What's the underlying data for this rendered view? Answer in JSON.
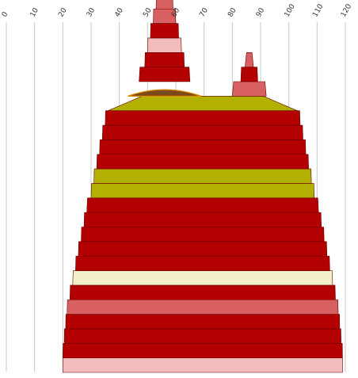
{
  "chart_data": {
    "type": "area",
    "subtype": "stacked-band-profile",
    "title": "",
    "xlabel": "",
    "ylabel": "",
    "x_ticks": [
      0,
      10,
      20,
      30,
      40,
      50,
      60,
      70,
      80,
      90,
      100,
      110,
      120
    ],
    "xlim": [
      0,
      120
    ],
    "grid": "vertical",
    "legend": "none",
    "colors": {
      "red": "#b30000",
      "olive": "#b2b000",
      "salmon": "#d86060",
      "pink": "#f2bcbc",
      "cream": "#f2f0c8",
      "brown": "#7a4a1a",
      "orange": "#e08a00",
      "stroke": "#6a0000"
    },
    "bands": [
      {
        "layer": 1,
        "x": [
          20,
          119
        ],
        "color": "pink"
      },
      {
        "layer": 2,
        "x": [
          20,
          119
        ],
        "color": "red"
      },
      {
        "layer": 3,
        "x": [
          20.5,
          118.5
        ],
        "color": "red"
      },
      {
        "layer": 4,
        "x": [
          21,
          118
        ],
        "color": "red"
      },
      {
        "layer": 5,
        "x": [
          21.5,
          117.5
        ],
        "color": "salmon"
      },
      {
        "layer": 6,
        "x": [
          22.5,
          116.5
        ],
        "color": "red"
      },
      {
        "layer": 7,
        "x": [
          23.5,
          115.5
        ],
        "color": "cream"
      },
      {
        "layer": 8,
        "x": [
          24.5,
          114.5
        ],
        "color": "red"
      },
      {
        "layer": 9,
        "x": [
          25.5,
          113.5
        ],
        "color": "red"
      },
      {
        "layer": 10,
        "x": [
          26.5,
          112.5
        ],
        "color": "red"
      },
      {
        "layer": 11,
        "x": [
          27.5,
          111.5
        ],
        "color": "red"
      },
      {
        "layer": 12,
        "x": [
          28.5,
          110.5
        ],
        "color": "red"
      },
      {
        "layer": 13,
        "x": [
          30,
          109
        ],
        "color": "olive"
      },
      {
        "layer": 14,
        "x": [
          31,
          108
        ],
        "color": "olive"
      },
      {
        "layer": 15,
        "x": [
          32,
          107
        ],
        "color": "red"
      },
      {
        "layer": 16,
        "x": [
          33,
          106
        ],
        "color": "red"
      },
      {
        "layer": 17,
        "x": [
          34,
          105
        ],
        "color": "red"
      },
      {
        "layer": 18,
        "x": [
          35,
          104
        ],
        "color": "red"
      },
      {
        "layer": 19,
        "x": [
          36,
          103
        ],
        "color": "olive"
      }
    ],
    "left_peak": [
      {
        "layer": 20,
        "x": [
          43,
          69
        ],
        "color": "red",
        "shape": "cap"
      },
      {
        "layer": 21,
        "x": [
          47,
          65
        ],
        "color": "red"
      },
      {
        "layer": 22,
        "x": [
          49,
          63
        ],
        "color": "red"
      },
      {
        "layer": 23,
        "x": [
          50,
          62
        ],
        "color": "pink"
      },
      {
        "layer": 24,
        "x": [
          51,
          61
        ],
        "color": "red"
      },
      {
        "layer": 25,
        "x": [
          52,
          60
        ],
        "color": "salmon"
      },
      {
        "layer": 26,
        "x": [
          53,
          59
        ],
        "color": "salmon"
      },
      {
        "layer": 27,
        "x": [
          54,
          58
        ],
        "color": "olive"
      },
      {
        "layer": 28,
        "x": [
          55,
          57
        ],
        "color": "red"
      }
    ],
    "right_peak": [
      {
        "layer": 20,
        "x": [
          80,
          92
        ],
        "color": "salmon"
      },
      {
        "layer": 21,
        "x": [
          83,
          89
        ],
        "color": "red"
      },
      {
        "layer": 22,
        "x": [
          84.5,
          87.5
        ],
        "color": "salmon"
      }
    ]
  }
}
